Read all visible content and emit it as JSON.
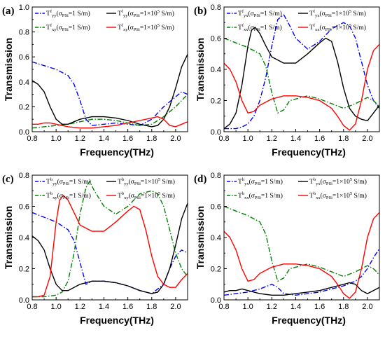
{
  "colors": {
    "blue": "#0000ff",
    "green": "#008000",
    "black": "#000000",
    "red": "#ff0000"
  },
  "chart_data": [
    {
      "type": "line",
      "panel_label": "(a)",
      "xlabel": "Frequency(THz)",
      "ylabel": "Transmission",
      "xlim": [
        0.8,
        2.1
      ],
      "ylim": [
        0.0,
        1.0
      ],
      "xticks": [
        "0.8",
        "1.0",
        "1.2",
        "1.4",
        "1.6",
        "1.8",
        "2.0"
      ],
      "yticks": [
        "0.0",
        "0.2",
        "0.4",
        "0.6",
        "0.8",
        "1.0"
      ],
      "legend_position": "top",
      "series": [
        {
          "name": "T^f_yy(σPSi=1 S/m)",
          "legend": {
            "main": "T",
            "sup": "f",
            "sub": "yy",
            "cond": "(σ",
            "condsub": "PSi",
            "val": "=1 S/m)"
          },
          "color": "blue",
          "style": "dashdot",
          "x": [
            0.8,
            0.9,
            1.0,
            1.1,
            1.15,
            1.2,
            1.25,
            1.3,
            1.4,
            1.5,
            1.6,
            1.7,
            1.8,
            1.9,
            2.0,
            2.05,
            2.1
          ],
          "y": [
            0.56,
            0.53,
            0.5,
            0.45,
            0.38,
            0.25,
            0.1,
            0.05,
            0.06,
            0.07,
            0.06,
            0.05,
            0.1,
            0.2,
            0.28,
            0.32,
            0.3
          ]
        },
        {
          "name": "T^f_xy(σPSi=1 S/m)",
          "legend": {
            "main": "T",
            "sup": "f",
            "sub": "xy",
            "cond": "(σ",
            "condsub": "PSi",
            "val": "=1 S/m)"
          },
          "color": "green",
          "style": "dashdot",
          "x": [
            0.8,
            0.9,
            1.0,
            1.1,
            1.2,
            1.3,
            1.4,
            1.5,
            1.6,
            1.7,
            1.8,
            1.9,
            2.0,
            2.05,
            2.1
          ],
          "y": [
            0.03,
            0.04,
            0.05,
            0.06,
            0.08,
            0.1,
            0.1,
            0.09,
            0.07,
            0.05,
            0.06,
            0.12,
            0.2,
            0.25,
            0.3
          ]
        },
        {
          "name": "T^f_yy(σPSi=1×10^5 S/m)",
          "legend": {
            "main": "T",
            "sup": "f",
            "sub": "yy",
            "cond": "(σ",
            "condsub": "PSi",
            "val": "=1×10",
            "valsup": "5",
            "val2": " S/m)"
          },
          "color": "black",
          "style": "solid",
          "x": [
            0.8,
            0.85,
            0.9,
            0.95,
            1.0,
            1.05,
            1.1,
            1.2,
            1.3,
            1.4,
            1.5,
            1.6,
            1.7,
            1.8,
            1.85,
            1.9,
            1.95,
            2.0,
            2.05,
            2.1
          ],
          "y": [
            0.41,
            0.38,
            0.32,
            0.2,
            0.1,
            0.06,
            0.06,
            0.1,
            0.12,
            0.12,
            0.11,
            0.09,
            0.06,
            0.04,
            0.05,
            0.1,
            0.2,
            0.35,
            0.52,
            0.62
          ]
        },
        {
          "name": "T^f_xy(σPSi=1×10^5 S/m)",
          "legend": {
            "main": "T",
            "sup": "f",
            "sub": "xy",
            "cond": "(σ",
            "condsub": "PSi",
            "val": "=1×10",
            "valsup": "5",
            "val2": " S/m)"
          },
          "color": "red",
          "style": "solid",
          "x": [
            0.8,
            0.85,
            0.9,
            0.95,
            1.0,
            1.05,
            1.1,
            1.2,
            1.3,
            1.4,
            1.5,
            1.6,
            1.7,
            1.8,
            1.85,
            1.9,
            1.95,
            2.0,
            2.05,
            2.1
          ],
          "y": [
            0.06,
            0.06,
            0.07,
            0.07,
            0.06,
            0.05,
            0.04,
            0.03,
            0.03,
            0.04,
            0.05,
            0.07,
            0.09,
            0.11,
            0.12,
            0.1,
            0.05,
            0.04,
            0.06,
            0.08
          ]
        }
      ]
    },
    {
      "type": "line",
      "panel_label": "(b)",
      "xlabel": "Frequency(THz)",
      "ylabel": "Transmission",
      "xlim": [
        0.8,
        2.1
      ],
      "ylim": [
        0.0,
        0.8
      ],
      "xticks": [
        "0.8",
        "1.0",
        "1.2",
        "1.4",
        "1.6",
        "1.8",
        "2.0"
      ],
      "yticks": [
        "0.0",
        "0.2",
        "0.4",
        "0.6",
        "0.8"
      ],
      "legend_position": "top",
      "series": [
        {
          "name": "T^f_yx(σPSi=1 S/m)",
          "legend": {
            "main": "T",
            "sup": "f",
            "sub": "yx",
            "cond": "(σ",
            "condsub": "PSi",
            "val": "=1 S/m)"
          },
          "color": "blue",
          "style": "dashdot",
          "x": [
            0.8,
            0.9,
            0.95,
            1.0,
            1.05,
            1.1,
            1.15,
            1.2,
            1.25,
            1.3,
            1.35,
            1.4,
            1.5,
            1.6,
            1.7,
            1.8,
            1.85,
            1.9,
            1.95,
            2.0,
            2.05,
            2.1
          ],
          "y": [
            0.02,
            0.02,
            0.03,
            0.05,
            0.1,
            0.2,
            0.35,
            0.55,
            0.72,
            0.75,
            0.68,
            0.6,
            0.53,
            0.58,
            0.66,
            0.7,
            0.68,
            0.6,
            0.45,
            0.3,
            0.2,
            0.15
          ]
        },
        {
          "name": "T^f_xx(σPSi=1 S/m)",
          "legend": {
            "main": "T",
            "sup": "f",
            "sub": "xx",
            "cond": "(σ",
            "condsub": "PSi",
            "val": "=1 S/m)"
          },
          "color": "green",
          "style": "dashdot",
          "x": [
            0.8,
            0.9,
            1.0,
            1.1,
            1.15,
            1.2,
            1.25,
            1.3,
            1.35,
            1.4,
            1.5,
            1.6,
            1.7,
            1.8,
            1.9,
            2.0,
            2.05,
            2.1
          ],
          "y": [
            0.6,
            0.57,
            0.54,
            0.5,
            0.42,
            0.25,
            0.12,
            0.14,
            0.2,
            0.21,
            0.23,
            0.21,
            0.18,
            0.15,
            0.18,
            0.22,
            0.2,
            0.16
          ]
        },
        {
          "name": "T^f_yx(σPSi=1×10^5 S/m)",
          "legend": {
            "main": "T",
            "sup": "f",
            "sub": "yx",
            "cond": "(σ",
            "condsub": "PSi",
            "val": "=1×10",
            "valsup": "5",
            "val2": " S/m)"
          },
          "color": "black",
          "style": "solid",
          "x": [
            0.8,
            0.85,
            0.9,
            0.95,
            1.0,
            1.03,
            1.06,
            1.1,
            1.15,
            1.2,
            1.3,
            1.4,
            1.5,
            1.6,
            1.65,
            1.7,
            1.75,
            1.8,
            1.85,
            1.9,
            1.95,
            2.0,
            2.05,
            2.1
          ],
          "y": [
            0.02,
            0.05,
            0.12,
            0.3,
            0.55,
            0.65,
            0.67,
            0.63,
            0.55,
            0.48,
            0.44,
            0.44,
            0.5,
            0.57,
            0.6,
            0.58,
            0.45,
            0.28,
            0.15,
            0.1,
            0.08,
            0.07,
            0.12,
            0.17
          ]
        },
        {
          "name": "T^f_xx(σPSi=1×10^5 S/m)",
          "legend": {
            "main": "T",
            "sup": "f",
            "sub": "xx",
            "cond": "(σ",
            "condsub": "PSi",
            "val": "=1×10",
            "valsup": "5",
            "val2": " S/m)"
          },
          "color": "red",
          "style": "solid",
          "x": [
            0.8,
            0.85,
            0.9,
            0.95,
            1.0,
            1.05,
            1.1,
            1.2,
            1.3,
            1.4,
            1.5,
            1.6,
            1.7,
            1.75,
            1.8,
            1.85,
            1.9,
            1.95,
            2.0,
            2.05,
            2.1
          ],
          "y": [
            0.44,
            0.4,
            0.32,
            0.2,
            0.12,
            0.13,
            0.17,
            0.21,
            0.23,
            0.23,
            0.22,
            0.2,
            0.15,
            0.1,
            0.04,
            0.01,
            0.05,
            0.2,
            0.4,
            0.52,
            0.56
          ]
        }
      ]
    },
    {
      "type": "line",
      "panel_label": "(c)",
      "xlabel": "Frequency(THz)",
      "ylabel": "Transmission",
      "xlim": [
        0.8,
        2.1
      ],
      "ylim": [
        0.0,
        0.8
      ],
      "xticks": [
        "0.8",
        "1.0",
        "1.2",
        "1.4",
        "1.6",
        "1.8",
        "2.0"
      ],
      "yticks": [
        "0.0",
        "0.2",
        "0.4",
        "0.6",
        "0.8"
      ],
      "legend_position": "top",
      "series": [
        {
          "name": "T^b_yy(σPSi=1 S/m)",
          "legend": {
            "main": "T",
            "sup": "b",
            "sub": "yy",
            "cond": "(σ",
            "condsub": "PSi",
            "val": "=1 S/m)"
          },
          "color": "blue",
          "style": "dashdot",
          "x": [
            0.8,
            0.9,
            1.0,
            1.1,
            1.15,
            1.2,
            1.25,
            1.3,
            1.4,
            1.5,
            1.6,
            1.7,
            1.8,
            1.9,
            1.95,
            2.0,
            2.05,
            2.1
          ],
          "y": [
            0.56,
            0.53,
            0.5,
            0.45,
            0.38,
            0.24,
            0.1,
            0.12,
            0.12,
            0.11,
            0.09,
            0.06,
            0.04,
            0.1,
            0.2,
            0.28,
            0.32,
            0.3
          ]
        },
        {
          "name": "T^b_xy(σPSi=1 S/m)",
          "legend": {
            "main": "T",
            "sup": "b",
            "sub": "xy",
            "cond": "(σ",
            "condsub": "PSi",
            "val": "=1 S/m)"
          },
          "color": "green",
          "style": "dashdot",
          "x": [
            0.8,
            0.9,
            1.0,
            1.05,
            1.1,
            1.15,
            1.2,
            1.25,
            1.28,
            1.32,
            1.4,
            1.5,
            1.6,
            1.7,
            1.8,
            1.85,
            1.9,
            1.95,
            2.0,
            2.05,
            2.1
          ],
          "y": [
            0.02,
            0.02,
            0.03,
            0.05,
            0.12,
            0.3,
            0.55,
            0.72,
            0.76,
            0.7,
            0.6,
            0.55,
            0.6,
            0.68,
            0.7,
            0.68,
            0.6,
            0.45,
            0.3,
            0.2,
            0.15
          ]
        },
        {
          "name": "T^b_yy(σPSi=1×10^5 S/m)",
          "legend": {
            "main": "T",
            "sup": "b",
            "sub": "yy",
            "cond": "(σ",
            "condsub": "PSi",
            "val": "=1×10",
            "valsup": "5",
            "val2": " S/m)"
          },
          "color": "black",
          "style": "solid",
          "x": [
            0.8,
            0.85,
            0.9,
            0.95,
            1.0,
            1.05,
            1.1,
            1.2,
            1.3,
            1.4,
            1.5,
            1.6,
            1.7,
            1.8,
            1.85,
            1.9,
            1.95,
            2.0,
            2.05,
            2.1
          ],
          "y": [
            0.41,
            0.38,
            0.32,
            0.2,
            0.1,
            0.06,
            0.06,
            0.1,
            0.12,
            0.12,
            0.11,
            0.09,
            0.06,
            0.04,
            0.05,
            0.1,
            0.2,
            0.35,
            0.52,
            0.62
          ]
        },
        {
          "name": "T^b_xy(σPSi=1×10^5 S/m)",
          "legend": {
            "main": "T",
            "sup": "b",
            "sub": "xy",
            "cond": "(σ",
            "condsub": "PSi",
            "val": "=1×10",
            "valsup": "5",
            "val2": " S/m)"
          },
          "color": "red",
          "style": "solid",
          "x": [
            0.8,
            0.85,
            0.9,
            0.95,
            1.0,
            1.03,
            1.06,
            1.1,
            1.15,
            1.2,
            1.3,
            1.4,
            1.5,
            1.6,
            1.65,
            1.7,
            1.75,
            1.8,
            1.85,
            1.9,
            1.95,
            2.0,
            2.05,
            2.1
          ],
          "y": [
            0.02,
            0.02,
            0.03,
            0.15,
            0.5,
            0.64,
            0.67,
            0.64,
            0.56,
            0.48,
            0.44,
            0.44,
            0.5,
            0.57,
            0.6,
            0.58,
            0.45,
            0.28,
            0.15,
            0.1,
            0.08,
            0.08,
            0.13,
            0.17
          ]
        }
      ]
    },
    {
      "type": "line",
      "panel_label": "(d)",
      "xlabel": "Frequency(THz)",
      "ylabel": "Transmission",
      "xlim": [
        0.8,
        2.1
      ],
      "ylim": [
        0.0,
        0.8
      ],
      "xticks": [
        "0.8",
        "1.0",
        "1.2",
        "1.4",
        "1.6",
        "1.8",
        "2.0"
      ],
      "yticks": [
        "0.0",
        "0.2",
        "0.4",
        "0.6",
        "0.8"
      ],
      "legend_position": "top",
      "series": [
        {
          "name": "T^b_yx(σPSi=1 S/m)",
          "legend": {
            "main": "T",
            "sup": "b",
            "sub": "yx",
            "cond": "(σ",
            "condsub": "PSi",
            "val": "=1 S/m)"
          },
          "color": "blue",
          "style": "dashdot",
          "x": [
            0.8,
            0.9,
            1.0,
            1.1,
            1.2,
            1.25,
            1.3,
            1.4,
            1.5,
            1.6,
            1.7,
            1.8,
            1.9,
            1.95,
            2.0,
            2.05,
            2.1
          ],
          "y": [
            0.03,
            0.04,
            0.05,
            0.07,
            0.1,
            0.08,
            0.04,
            0.03,
            0.04,
            0.05,
            0.07,
            0.09,
            0.12,
            0.15,
            0.2,
            0.27,
            0.33
          ]
        },
        {
          "name": "T^b_xx(σPSi=1 S/m)",
          "legend": {
            "main": "T",
            "sup": "b",
            "sub": "xx",
            "cond": "(σ",
            "condsub": "PSi",
            "val": "=1 S/m)"
          },
          "color": "green",
          "style": "dashdot",
          "x": [
            0.8,
            0.9,
            1.0,
            1.1,
            1.15,
            1.2,
            1.25,
            1.3,
            1.35,
            1.4,
            1.5,
            1.6,
            1.7,
            1.8,
            1.9,
            2.0,
            2.05,
            2.1
          ],
          "y": [
            0.6,
            0.57,
            0.54,
            0.5,
            0.42,
            0.25,
            0.12,
            0.14,
            0.2,
            0.21,
            0.23,
            0.21,
            0.18,
            0.15,
            0.18,
            0.22,
            0.2,
            0.16
          ]
        },
        {
          "name": "T^b_yx(σPSi=1×10^5 S/m)",
          "legend": {
            "main": "T",
            "sup": "b",
            "sub": "yx",
            "cond": "(σ",
            "condsub": "PSi",
            "val": "=1×10",
            "valsup": "5",
            "val2": " S/m)"
          },
          "color": "black",
          "style": "solid",
          "x": [
            0.8,
            0.85,
            0.9,
            0.95,
            1.0,
            1.05,
            1.1,
            1.2,
            1.3,
            1.4,
            1.5,
            1.6,
            1.7,
            1.8,
            1.85,
            1.9,
            1.95,
            2.0,
            2.05,
            2.1
          ],
          "y": [
            0.05,
            0.06,
            0.06,
            0.07,
            0.06,
            0.05,
            0.04,
            0.03,
            0.03,
            0.04,
            0.05,
            0.06,
            0.08,
            0.1,
            0.11,
            0.1,
            0.06,
            0.04,
            0.06,
            0.08
          ]
        },
        {
          "name": "T^b_xx(σPSi=1×10^5 S/m)",
          "legend": {
            "main": "T",
            "sup": "b",
            "sub": "xx",
            "cond": "(σ",
            "condsub": "PSi",
            "val": "=1×10",
            "valsup": "5",
            "val2": " S/m)"
          },
          "color": "red",
          "style": "solid",
          "x": [
            0.8,
            0.85,
            0.9,
            0.95,
            1.0,
            1.05,
            1.1,
            1.2,
            1.3,
            1.4,
            1.5,
            1.6,
            1.7,
            1.75,
            1.8,
            1.85,
            1.9,
            1.95,
            2.0,
            2.05,
            2.1
          ],
          "y": [
            0.44,
            0.4,
            0.32,
            0.2,
            0.12,
            0.13,
            0.17,
            0.21,
            0.23,
            0.23,
            0.22,
            0.2,
            0.15,
            0.1,
            0.04,
            0.01,
            0.05,
            0.2,
            0.4,
            0.52,
            0.56
          ]
        }
      ]
    }
  ]
}
